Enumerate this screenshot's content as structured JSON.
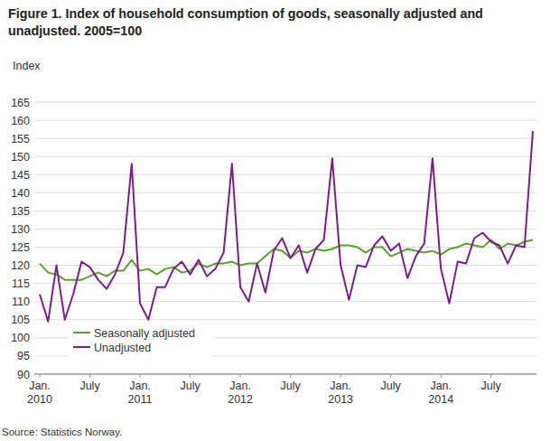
{
  "chart_data": {
    "type": "line",
    "title": "Figure 1. Index of household consumption of goods, seasonally adjusted and unadjusted. 2005=100",
    "y_label": "Index",
    "source": "Source: Statistics Norway.",
    "categories": [
      "Jan. 2010",
      null,
      null,
      null,
      null,
      null,
      "July",
      null,
      null,
      null,
      null,
      null,
      "Jan. 2011",
      null,
      null,
      null,
      null,
      null,
      "July",
      null,
      null,
      null,
      null,
      null,
      "Jan. 2012",
      null,
      null,
      null,
      null,
      null,
      "July",
      null,
      null,
      null,
      null,
      null,
      "Jan. 2013",
      null,
      null,
      null,
      null,
      null,
      "July",
      null,
      null,
      null,
      null,
      null,
      "Jan. 2014",
      null,
      null,
      null,
      null,
      null,
      "July",
      null,
      null,
      null,
      null,
      null
    ],
    "series": [
      {
        "name": "Seasonally adjusted",
        "color": "#5c9e31",
        "values": [
          120.5,
          118,
          117.5,
          116,
          116,
          116,
          117,
          118,
          117,
          118.5,
          118.5,
          121.5,
          118.5,
          119,
          117.5,
          119,
          119.5,
          118,
          118.5,
          120.5,
          119.5,
          120.5,
          120.5,
          121,
          120,
          120.5,
          120.5,
          122.5,
          124.5,
          124,
          122,
          124,
          123.5,
          124.5,
          124,
          124.5,
          125.5,
          125.5,
          125,
          123.5,
          125,
          125,
          122.5,
          123.5,
          124.5,
          124,
          123.5,
          124,
          123,
          124.5,
          125,
          126,
          125.5,
          125,
          127,
          124.5,
          126,
          125.5,
          126.5,
          127
        ]
      },
      {
        "name": "Unadjusted",
        "color": "#7b1e8c",
        "values": [
          112,
          104.5,
          120,
          105,
          112,
          121,
          119.5,
          116,
          113.5,
          117.5,
          123.5,
          148,
          109.5,
          105,
          114,
          114,
          119,
          121,
          117.5,
          121.5,
          117,
          119,
          123.5,
          148,
          114,
          110,
          120.5,
          112.5,
          124,
          127.5,
          122,
          125.5,
          118,
          124.5,
          127,
          149.5,
          120,
          110.5,
          120,
          119.5,
          125.5,
          128,
          124,
          126,
          116.5,
          122.5,
          126,
          149.5,
          119,
          109.5,
          121,
          120.5,
          127.5,
          129,
          126.5,
          125.5,
          120.5,
          125.5,
          125,
          157
        ]
      }
    ],
    "ylim": [
      90,
      165
    ],
    "yticks": [
      90,
      95,
      100,
      105,
      110,
      115,
      120,
      125,
      130,
      135,
      140,
      145,
      150,
      155,
      160,
      165
    ],
    "grid": true,
    "legend": "lower left"
  }
}
